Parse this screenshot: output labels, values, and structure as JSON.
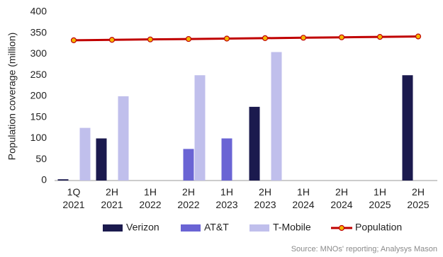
{
  "chart_data": {
    "type": "bar",
    "y_label": "Population coverage (million)",
    "source": "Source: MNOs' reporting; Analysys Mason",
    "categories": [
      "1Q 2021",
      "2H 2021",
      "1H 2022",
      "2H 2022",
      "1H 2023",
      "2H 2023",
      "1H 2024",
      "2H 2024",
      "1H 2025",
      "2H 2025"
    ],
    "series": [
      {
        "name": "Verizon",
        "color": "#1b1a4e",
        "values": [
          3,
          100,
          null,
          null,
          null,
          175,
          null,
          null,
          null,
          250
        ]
      },
      {
        "name": "AT&T",
        "color": "#6a64d4",
        "values": [
          null,
          null,
          null,
          75,
          100,
          null,
          null,
          null,
          null,
          null
        ]
      },
      {
        "name": "T-Mobile",
        "color": "#c0bfec",
        "values": [
          125,
          200,
          null,
          250,
          null,
          305,
          null,
          null,
          null,
          null
        ]
      },
      {
        "name": "Population",
        "type": "line",
        "color": "#c00000",
        "marker_color": "#f5b800",
        "values": [
          333,
          334,
          335,
          336,
          337,
          338,
          339,
          340,
          341,
          342
        ]
      }
    ],
    "ylim": [
      0,
      400
    ],
    "yticks": [
      0,
      50,
      100,
      150,
      200,
      250,
      300,
      350,
      400
    ],
    "grid": false
  }
}
